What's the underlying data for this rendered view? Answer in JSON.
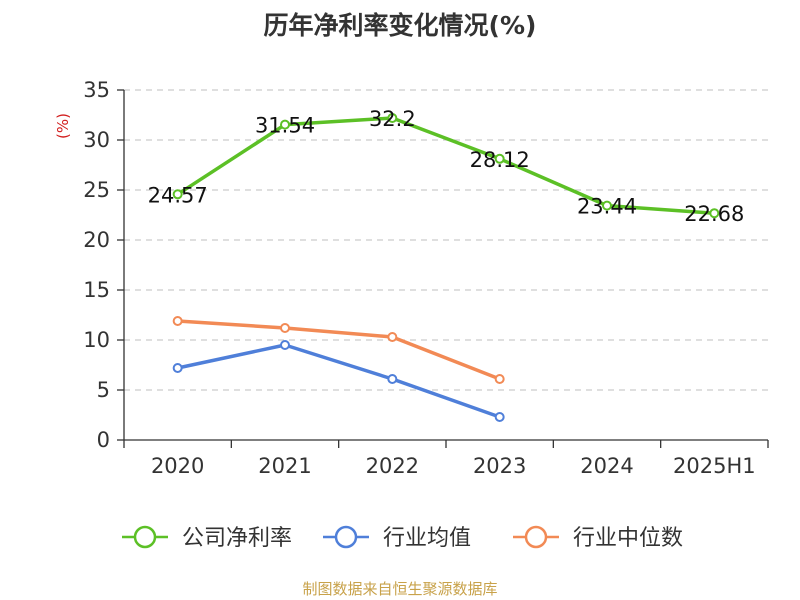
{
  "chart_data": {
    "type": "line",
    "title": "历年净利率变化情况(%)",
    "ylabel": "(%)",
    "categories": [
      "2020",
      "2021",
      "2022",
      "2023",
      "2024",
      "2025H1"
    ],
    "ylim": [
      0,
      35
    ],
    "yticks": [
      0,
      5,
      10,
      15,
      20,
      25,
      30,
      35
    ],
    "grid": true,
    "legend_position": "bottom",
    "series": [
      {
        "name": "公司净利率",
        "color": "#5cc026",
        "values": [
          24.57,
          31.54,
          32.2,
          28.12,
          23.44,
          22.68
        ],
        "data_labels": [
          "24.57",
          "31.54",
          "32.2",
          "28.12",
          "23.44",
          "22.68"
        ]
      },
      {
        "name": "行业均值",
        "color": "#4f7fd9",
        "values": [
          7.2,
          9.5,
          6.1,
          2.3,
          null,
          null
        ]
      },
      {
        "name": "行业中位数",
        "color": "#f28a55",
        "values": [
          11.9,
          11.2,
          10.3,
          6.1,
          null,
          null
        ]
      }
    ]
  },
  "source_note": "制图数据来自恒生聚源数据库"
}
